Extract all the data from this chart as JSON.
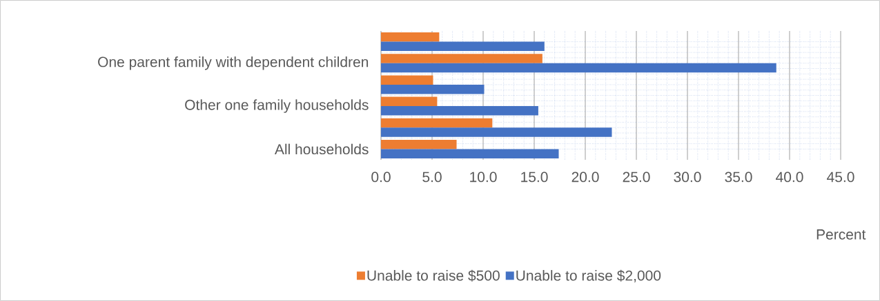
{
  "chart_data": {
    "type": "bar",
    "orientation": "horizontal",
    "categories": [
      null,
      "One parent family with dependent children",
      null,
      "Other one family households",
      null,
      "All households"
    ],
    "series": [
      {
        "name": "Unable to raise $500",
        "color": "#ed7d31",
        "values": [
          5.7,
          15.8,
          5.1,
          5.5,
          10.9,
          7.4
        ]
      },
      {
        "name": "Unable to raise $2,000",
        "color": "#4472c4",
        "values": [
          16.0,
          38.7,
          10.1,
          15.4,
          22.6,
          17.4
        ]
      }
    ],
    "xlabel": "Percent",
    "xlim": [
      0,
      45
    ],
    "xticks": [
      {
        "value": 0,
        "label": "0.0"
      },
      {
        "value": 5,
        "label": "5.0"
      },
      {
        "value": 10,
        "label": "10.0"
      },
      {
        "value": 15,
        "label": "15.0"
      },
      {
        "value": 20,
        "label": "20.0"
      },
      {
        "value": 25,
        "label": "25.0"
      },
      {
        "value": 30,
        "label": "30.0"
      },
      {
        "value": 35,
        "label": "35.0"
      },
      {
        "value": 40,
        "label": "40.0"
      },
      {
        "value": 45,
        "label": "45.0"
      }
    ],
    "grid": true,
    "legend": "bottom"
  }
}
